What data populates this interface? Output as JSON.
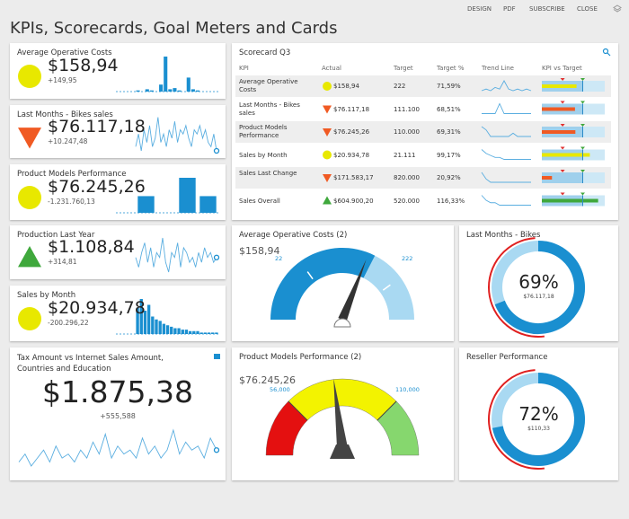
{
  "header": {
    "title": "KPIs, Scorecards, Goal Meters and Cards",
    "menu": [
      "DESIGN",
      "PDF",
      "SUBSCRIBE",
      "CLOSE"
    ]
  },
  "kpi_cards": [
    {
      "title": "Average Operative Costs",
      "value": "$158,94",
      "change": "+149,95",
      "indicator": "circle",
      "trend_type": "bar",
      "trend": [
        1,
        0,
        2,
        1,
        0,
        6,
        30,
        2,
        3,
        1,
        0,
        12,
        2,
        1,
        0,
        0,
        0,
        0
      ]
    },
    {
      "title": "Last Months - Bikes sales",
      "value": "$76.117,18",
      "change": "+10.247,48",
      "indicator": "triangle-down",
      "trend_type": "line",
      "trend": [
        6,
        9,
        5,
        10,
        7,
        11,
        6,
        8,
        13,
        7,
        9,
        6,
        10,
        8,
        12,
        7,
        10,
        9,
        11,
        8,
        6,
        10,
        9,
        11,
        8,
        10,
        7,
        6,
        9,
        5
      ]
    },
    {
      "title": "Product Models Performance",
      "value": "$76.245,26",
      "change": "-1.231.760,13",
      "indicator": "circle",
      "trend_type": "bar",
      "trend": [
        10,
        0,
        21,
        10
      ]
    },
    {
      "title": "Production Last Year",
      "value": "$1.108,84",
      "change": "+314,81",
      "indicator": "triangle-up",
      "trend_type": "line",
      "trend": [
        8,
        6,
        9,
        11,
        7,
        10,
        6,
        9,
        8,
        12,
        7,
        5,
        9,
        8,
        11,
        6,
        10,
        9,
        7,
        8,
        6,
        9,
        7,
        10,
        8,
        9,
        7,
        8
      ]
    },
    {
      "title": "Sales by Month",
      "value": "$20.934,78",
      "change": "-200.296,22",
      "indicator": "circle",
      "trend_type": "bar",
      "trend": [
        18,
        24,
        16,
        20,
        12,
        10,
        9,
        7,
        6,
        5,
        4,
        4,
        3,
        3,
        2,
        2,
        2,
        1,
        1,
        1,
        1,
        1
      ]
    },
    {
      "title": "Tax Amount vs Internet Sales Amount, Countries and Education",
      "value": "$1.875,38",
      "change": "+555,588",
      "indicator": "none",
      "trend_type": "line",
      "trend": [
        5,
        7,
        4,
        6,
        8,
        5,
        9,
        6,
        7,
        5,
        8,
        6,
        10,
        7,
        12,
        6,
        9,
        7,
        8,
        6,
        11,
        7,
        9,
        6,
        8,
        13,
        7,
        10,
        8,
        9,
        6,
        11,
        8
      ]
    }
  ],
  "scorecard": {
    "title": "Scorecard Q3",
    "columns": [
      "KPI",
      "Actual",
      "Target",
      "Target %",
      "Trend Line",
      "KPI vs Target"
    ],
    "rows": [
      {
        "kpi": "Average Operative Costs",
        "actual": "$158,94",
        "target": "222",
        "target_pct": {
          "value": 71.59,
          "label": "71,59%"
        },
        "status": "circle",
        "trend": [
          3,
          4,
          3,
          5,
          4,
          9,
          4,
          3,
          4,
          3,
          4,
          3
        ]
      },
      {
        "kpi": "Last Months - Bikes sales",
        "actual": "$76.117,18",
        "target": "111.100",
        "target_pct": {
          "value": 68.51,
          "label": "68,51%"
        },
        "status": "triangle-down",
        "trend": [
          3,
          3,
          3,
          3,
          4,
          3,
          3,
          3,
          3,
          3,
          3,
          3
        ]
      },
      {
        "kpi": "Product Models Performance",
        "actual": "$76.245,26",
        "target": "110.000",
        "target_pct": {
          "value": 69.31,
          "label": "69,31%"
        },
        "status": "triangle-down",
        "trend": [
          6,
          5,
          3,
          3,
          3,
          3,
          3,
          4,
          3,
          3,
          3,
          3
        ]
      },
      {
        "kpi": "Sales by Month",
        "actual": "$20.934,78",
        "target": "21.111",
        "target_pct": {
          "value": 99.17,
          "label": "99,17%"
        },
        "status": "circle",
        "trend": [
          8,
          6,
          5,
          4,
          4,
          3,
          3,
          3,
          3,
          3,
          3,
          3
        ]
      },
      {
        "kpi": "Sales Last Change",
        "actual": "$171.583,17",
        "target": "820.000",
        "target_pct": {
          "value": 20.92,
          "label": "20,92%"
        },
        "status": "triangle-down",
        "trend": [
          6,
          4,
          3,
          3,
          3,
          3,
          3,
          3,
          3,
          3,
          3,
          3
        ]
      },
      {
        "kpi": "Sales Overall",
        "actual": "$604.900,20",
        "target": "520.000",
        "target_pct": {
          "value": 116.33,
          "label": "116,33%"
        },
        "status": "triangle-up",
        "trend": [
          7,
          5,
          4,
          4,
          3,
          3,
          3,
          3,
          3,
          3,
          3,
          3
        ]
      }
    ]
  },
  "gauges": [
    {
      "title": "Average Operative Costs (2)",
      "value": "$158,94",
      "low_label": "22",
      "high_label": "222"
    },
    {
      "title": "Product Models Performance (2)",
      "value": "$76.245,26",
      "low_label": "56,000",
      "high_label": "110,000"
    }
  ],
  "donuts": [
    {
      "title": "Last Months - Bikes",
      "percent": {
        "value": 69,
        "label": "69%"
      },
      "amount": "$76.117,18"
    },
    {
      "title": "Reseller Performance",
      "percent": {
        "value": 72,
        "label": "72%"
      },
      "amount": "$110,33"
    }
  ]
}
